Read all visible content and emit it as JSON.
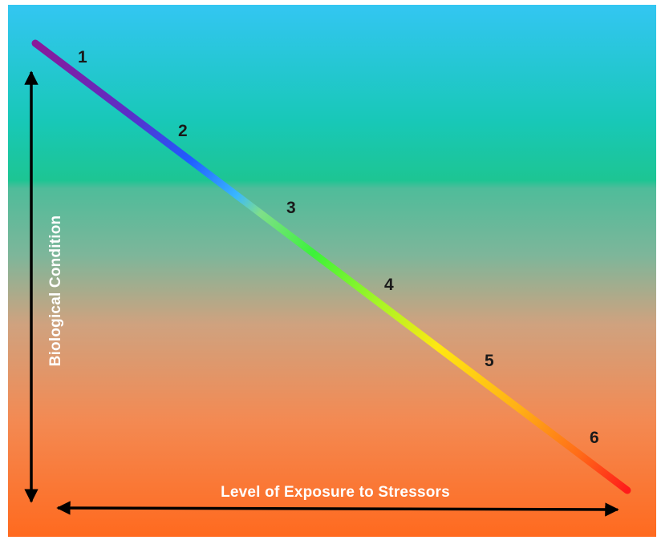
{
  "axes": {
    "y_label": "Biological Condition",
    "x_label": "Level of Exposure to Stressors"
  },
  "tiers": [
    "1",
    "2",
    "3",
    "4",
    "5",
    "6"
  ],
  "colors": {
    "bg_top": "#33c6f2",
    "bg_band": "#1dc593",
    "bg_mid": "#8ab497",
    "bg_bottom": "#ff6a1f",
    "line_start": "#8a1a9a",
    "line_blue": "#1f5cff",
    "line_green": "#3cf23a",
    "line_yellow": "#ffe712",
    "line_end": "#ff1a1a",
    "arrows": "#000000",
    "axis_text": "#ffffff",
    "tier_text": "#1a1a1a"
  }
}
